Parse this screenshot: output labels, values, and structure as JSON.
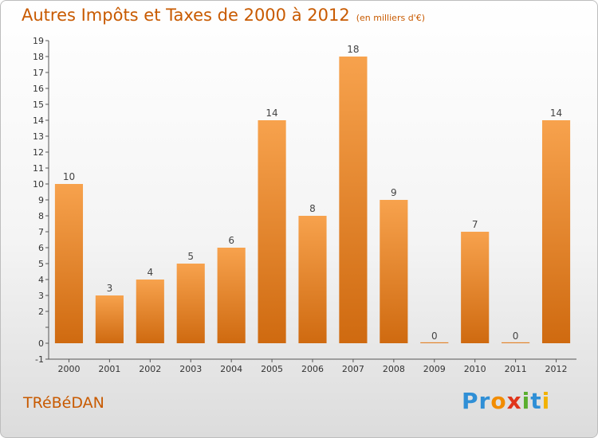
{
  "header": {
    "title": "Autres Impôts et Taxes de 2000 à 2012",
    "unit": "(en milliers d'€)"
  },
  "footer": {
    "place": "TRéBéDAN",
    "logo_letters": [
      {
        "ch": "P",
        "color": "#2f8fd6"
      },
      {
        "ch": "r",
        "color": "#2f8fd6"
      },
      {
        "ch": "o",
        "color": "#f28c00"
      },
      {
        "ch": "x",
        "color": "#e0351b"
      },
      {
        "ch": "i",
        "color": "#5aae2e"
      },
      {
        "ch": "t",
        "color": "#2f8fd6"
      },
      {
        "ch": "i",
        "color": "#f2b200"
      }
    ]
  },
  "chart_data": {
    "type": "bar",
    "title": "Autres Impôts et Taxes de 2000 à 2012",
    "subtitle": "(en milliers d'€)",
    "categories": [
      "2000",
      "2001",
      "2002",
      "2003",
      "2004",
      "2005",
      "2006",
      "2007",
      "2008",
      "2009",
      "2010",
      "2011",
      "2012"
    ],
    "values": [
      10,
      3,
      4,
      5,
      6,
      14,
      8,
      18,
      9,
      0,
      7,
      0,
      14
    ],
    "ylim": [
      -1,
      19
    ],
    "yticks": [
      -1,
      0,
      1,
      2,
      3,
      4,
      5,
      6,
      7,
      8,
      9,
      10,
      11,
      12,
      13,
      14,
      15,
      16,
      17,
      18,
      19
    ],
    "ytick_labels": [
      "-1",
      "0",
      "",
      "2",
      "3",
      "4",
      "5",
      "6",
      "7",
      "8",
      "9",
      "10",
      "11",
      "12",
      "13",
      "14",
      "15",
      "16",
      "17",
      "18",
      "19"
    ],
    "grid": false,
    "bar_color_top": "#f7a24d",
    "bar_color_bottom": "#cf6a10",
    "axis_color": "#555555",
    "xlabel": "",
    "ylabel": ""
  }
}
